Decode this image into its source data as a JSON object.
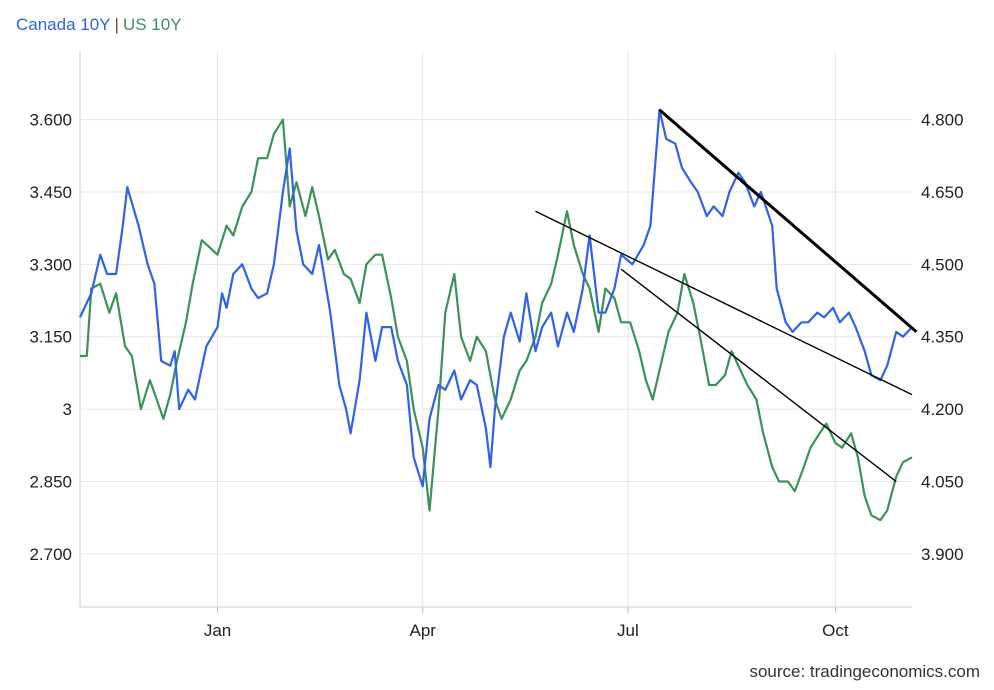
{
  "legend": {
    "canada_label": "Canada 10Y",
    "separator": "|",
    "us_label": "US 10Y"
  },
  "source": "source: tradingeconomics.com",
  "colors": {
    "canada": "#2f62ea",
    "us": "#3c9158",
    "trendline": "#000000",
    "grid": "#e6e6e6"
  },
  "chart_data": {
    "type": "line",
    "x_range": [
      "2023-11-01",
      "2024-11-04"
    ],
    "x_ticks": [
      {
        "label": "Jan",
        "date": "2024-01-01"
      },
      {
        "label": "Apr",
        "date": "2024-04-01"
      },
      {
        "label": "Jul",
        "date": "2024-07-01"
      },
      {
        "label": "Oct",
        "date": "2024-10-01"
      }
    ],
    "left_axis": {
      "min": 2.59,
      "max": 3.74,
      "ticks": [
        2.7,
        2.85,
        3.0,
        3.15,
        3.3,
        3.45,
        3.6
      ],
      "tick_labels": [
        "2.700",
        "2.850",
        "3",
        "3.150",
        "3.300",
        "3.450",
        "3.600"
      ]
    },
    "right_axis": {
      "min": 3.79,
      "max": 4.94,
      "ticks": [
        3.9,
        4.05,
        4.2,
        4.35,
        4.5,
        4.65,
        4.8
      ],
      "tick_labels": [
        "3.900",
        "4.050",
        "4.200",
        "4.350",
        "4.500",
        "4.650",
        "4.800"
      ]
    },
    "grid": true,
    "series": [
      {
        "name": "Canada 10Y",
        "axis": "left",
        "points": [
          [
            "2023-11-01",
            3.19
          ],
          [
            "2023-11-06",
            3.24
          ],
          [
            "2023-11-10",
            3.32
          ],
          [
            "2023-11-13",
            3.28
          ],
          [
            "2023-11-17",
            3.28
          ],
          [
            "2023-11-20",
            3.38
          ],
          [
            "2023-11-22",
            3.46
          ],
          [
            "2023-11-27",
            3.38
          ],
          [
            "2023-12-01",
            3.3
          ],
          [
            "2023-12-04",
            3.26
          ],
          [
            "2023-12-07",
            3.1
          ],
          [
            "2023-12-11",
            3.09
          ],
          [
            "2023-12-13",
            3.12
          ],
          [
            "2023-12-15",
            3.0
          ],
          [
            "2023-12-19",
            3.04
          ],
          [
            "2023-12-22",
            3.02
          ],
          [
            "2023-12-27",
            3.13
          ],
          [
            "2024-01-01",
            3.17
          ],
          [
            "2024-01-03",
            3.24
          ],
          [
            "2024-01-05",
            3.21
          ],
          [
            "2024-01-08",
            3.28
          ],
          [
            "2024-01-12",
            3.3
          ],
          [
            "2024-01-16",
            3.25
          ],
          [
            "2024-01-19",
            3.23
          ],
          [
            "2024-01-23",
            3.24
          ],
          [
            "2024-01-26",
            3.3
          ],
          [
            "2024-01-30",
            3.45
          ],
          [
            "2024-02-02",
            3.54
          ],
          [
            "2024-02-05",
            3.37
          ],
          [
            "2024-02-08",
            3.3
          ],
          [
            "2024-02-12",
            3.28
          ],
          [
            "2024-02-15",
            3.34
          ],
          [
            "2024-02-20",
            3.2
          ],
          [
            "2024-02-24",
            3.05
          ],
          [
            "2024-02-27",
            3.0
          ],
          [
            "2024-02-29",
            2.95
          ],
          [
            "2024-03-04",
            3.06
          ],
          [
            "2024-03-07",
            3.2
          ],
          [
            "2024-03-11",
            3.1
          ],
          [
            "2024-03-14",
            3.17
          ],
          [
            "2024-03-18",
            3.17
          ],
          [
            "2024-03-21",
            3.1
          ],
          [
            "2024-03-25",
            3.05
          ],
          [
            "2024-03-28",
            2.9
          ],
          [
            "2024-04-01",
            2.84
          ],
          [
            "2024-04-04",
            2.98
          ],
          [
            "2024-04-08",
            3.05
          ],
          [
            "2024-04-11",
            3.04
          ],
          [
            "2024-04-15",
            3.08
          ],
          [
            "2024-04-18",
            3.02
          ],
          [
            "2024-04-22",
            3.06
          ],
          [
            "2024-04-25",
            3.05
          ],
          [
            "2024-04-29",
            2.96
          ],
          [
            "2024-05-01",
            2.88
          ],
          [
            "2024-05-03",
            3.0
          ],
          [
            "2024-05-07",
            3.15
          ],
          [
            "2024-05-10",
            3.2
          ],
          [
            "2024-05-14",
            3.14
          ],
          [
            "2024-05-17",
            3.24
          ],
          [
            "2024-05-21",
            3.12
          ],
          [
            "2024-05-24",
            3.17
          ],
          [
            "2024-05-28",
            3.2
          ],
          [
            "2024-05-31",
            3.13
          ],
          [
            "2024-06-04",
            3.2
          ],
          [
            "2024-06-07",
            3.16
          ],
          [
            "2024-06-11",
            3.25
          ],
          [
            "2024-06-14",
            3.36
          ],
          [
            "2024-06-18",
            3.2
          ],
          [
            "2024-06-21",
            3.2
          ],
          [
            "2024-06-25",
            3.25
          ],
          [
            "2024-06-28",
            3.32
          ],
          [
            "2024-07-03",
            3.3
          ],
          [
            "2024-07-08",
            3.34
          ],
          [
            "2024-07-11",
            3.38
          ],
          [
            "2024-07-15",
            3.62
          ],
          [
            "2024-07-18",
            3.56
          ],
          [
            "2024-07-22",
            3.55
          ],
          [
            "2024-07-25",
            3.5
          ],
          [
            "2024-07-29",
            3.47
          ],
          [
            "2024-08-01",
            3.45
          ],
          [
            "2024-08-05",
            3.4
          ],
          [
            "2024-08-08",
            3.42
          ],
          [
            "2024-08-12",
            3.4
          ],
          [
            "2024-08-15",
            3.45
          ],
          [
            "2024-08-19",
            3.49
          ],
          [
            "2024-08-22",
            3.47
          ],
          [
            "2024-08-26",
            3.42
          ],
          [
            "2024-08-29",
            3.45
          ],
          [
            "2024-09-03",
            3.38
          ],
          [
            "2024-09-05",
            3.25
          ],
          [
            "2024-09-09",
            3.18
          ],
          [
            "2024-09-12",
            3.16
          ],
          [
            "2024-09-16",
            3.18
          ],
          [
            "2024-09-19",
            3.18
          ],
          [
            "2024-09-23",
            3.2
          ],
          [
            "2024-09-26",
            3.19
          ],
          [
            "2024-09-30",
            3.21
          ],
          [
            "2024-10-03",
            3.18
          ],
          [
            "2024-10-07",
            3.2
          ],
          [
            "2024-10-10",
            3.17
          ],
          [
            "2024-10-14",
            3.12
          ],
          [
            "2024-10-17",
            3.07
          ],
          [
            "2024-10-21",
            3.06
          ],
          [
            "2024-10-24",
            3.09
          ],
          [
            "2024-10-28",
            3.16
          ],
          [
            "2024-10-31",
            3.15
          ],
          [
            "2024-11-04",
            3.17
          ]
        ]
      },
      {
        "name": "US 10Y",
        "axis": "right",
        "points": [
          [
            "2023-11-01",
            4.31
          ],
          [
            "2023-11-04",
            4.31
          ],
          [
            "2023-11-06",
            4.45
          ],
          [
            "2023-11-10",
            4.46
          ],
          [
            "2023-11-14",
            4.4
          ],
          [
            "2023-11-17",
            4.44
          ],
          [
            "2023-11-21",
            4.33
          ],
          [
            "2023-11-24",
            4.31
          ],
          [
            "2023-11-28",
            4.2
          ],
          [
            "2023-12-02",
            4.26
          ],
          [
            "2023-12-05",
            4.22
          ],
          [
            "2023-12-08",
            4.18
          ],
          [
            "2023-12-11",
            4.23
          ],
          [
            "2023-12-14",
            4.3
          ],
          [
            "2023-12-18",
            4.38
          ],
          [
            "2023-12-21",
            4.46
          ],
          [
            "2023-12-25",
            4.55
          ],
          [
            "2024-01-01",
            4.52
          ],
          [
            "2024-01-05",
            4.58
          ],
          [
            "2024-01-08",
            4.56
          ],
          [
            "2024-01-12",
            4.62
          ],
          [
            "2024-01-16",
            4.65
          ],
          [
            "2024-01-19",
            4.72
          ],
          [
            "2024-01-23",
            4.72
          ],
          [
            "2024-01-26",
            4.77
          ],
          [
            "2024-01-30",
            4.8
          ],
          [
            "2024-02-02",
            4.62
          ],
          [
            "2024-02-05",
            4.67
          ],
          [
            "2024-02-09",
            4.6
          ],
          [
            "2024-02-12",
            4.66
          ],
          [
            "2024-02-15",
            4.6
          ],
          [
            "2024-02-19",
            4.51
          ],
          [
            "2024-02-22",
            4.53
          ],
          [
            "2024-02-26",
            4.48
          ],
          [
            "2024-02-29",
            4.47
          ],
          [
            "2024-03-04",
            4.42
          ],
          [
            "2024-03-07",
            4.5
          ],
          [
            "2024-03-11",
            4.52
          ],
          [
            "2024-03-14",
            4.52
          ],
          [
            "2024-03-18",
            4.43
          ],
          [
            "2024-03-21",
            4.35
          ],
          [
            "2024-03-25",
            4.3
          ],
          [
            "2024-03-28",
            4.2
          ],
          [
            "2024-04-01",
            4.12
          ],
          [
            "2024-04-04",
            3.99
          ],
          [
            "2024-04-08",
            4.2
          ],
          [
            "2024-04-11",
            4.4
          ],
          [
            "2024-04-15",
            4.48
          ],
          [
            "2024-04-18",
            4.35
          ],
          [
            "2024-04-22",
            4.3
          ],
          [
            "2024-04-25",
            4.35
          ],
          [
            "2024-04-29",
            4.32
          ],
          [
            "2024-05-03",
            4.22
          ],
          [
            "2024-05-06",
            4.18
          ],
          [
            "2024-05-10",
            4.22
          ],
          [
            "2024-05-14",
            4.28
          ],
          [
            "2024-05-17",
            4.3
          ],
          [
            "2024-05-21",
            4.35
          ],
          [
            "2024-05-24",
            4.42
          ],
          [
            "2024-05-28",
            4.46
          ],
          [
            "2024-05-31",
            4.52
          ],
          [
            "2024-06-04",
            4.61
          ],
          [
            "2024-06-07",
            4.54
          ],
          [
            "2024-06-11",
            4.48
          ],
          [
            "2024-06-14",
            4.45
          ],
          [
            "2024-06-18",
            4.36
          ],
          [
            "2024-06-21",
            4.45
          ],
          [
            "2024-06-25",
            4.43
          ],
          [
            "2024-06-28",
            4.38
          ],
          [
            "2024-07-02",
            4.38
          ],
          [
            "2024-07-06",
            4.32
          ],
          [
            "2024-07-09",
            4.26
          ],
          [
            "2024-07-12",
            4.22
          ],
          [
            "2024-07-16",
            4.3
          ],
          [
            "2024-07-19",
            4.36
          ],
          [
            "2024-07-23",
            4.4
          ],
          [
            "2024-07-26",
            4.48
          ],
          [
            "2024-07-30",
            4.42
          ],
          [
            "2024-08-02",
            4.35
          ],
          [
            "2024-08-06",
            4.25
          ],
          [
            "2024-08-09",
            4.25
          ],
          [
            "2024-08-13",
            4.27
          ],
          [
            "2024-08-16",
            4.32
          ],
          [
            "2024-08-20",
            4.28
          ],
          [
            "2024-08-23",
            4.25
          ],
          [
            "2024-08-27",
            4.22
          ],
          [
            "2024-08-30",
            4.15
          ],
          [
            "2024-09-03",
            4.08
          ],
          [
            "2024-09-06",
            4.05
          ],
          [
            "2024-09-10",
            4.05
          ],
          [
            "2024-09-13",
            4.03
          ],
          [
            "2024-09-17",
            4.08
          ],
          [
            "2024-09-20",
            4.12
          ],
          [
            "2024-09-24",
            4.15
          ],
          [
            "2024-09-27",
            4.17
          ],
          [
            "2024-10-01",
            4.13
          ],
          [
            "2024-10-04",
            4.12
          ],
          [
            "2024-10-08",
            4.15
          ],
          [
            "2024-10-11",
            4.1
          ],
          [
            "2024-10-14",
            4.02
          ],
          [
            "2024-10-17",
            3.98
          ],
          [
            "2024-10-21",
            3.97
          ],
          [
            "2024-10-24",
            3.99
          ],
          [
            "2024-10-28",
            4.06
          ],
          [
            "2024-10-31",
            4.09
          ],
          [
            "2024-11-04",
            4.1
          ]
        ]
      }
    ],
    "trendlines": [
      {
        "axis": "left",
        "from": [
          "2024-07-15",
          3.62
        ],
        "to": [
          "2024-11-06",
          3.16
        ]
      },
      {
        "axis": "right",
        "from": [
          "2024-05-21",
          4.61
        ],
        "to": [
          "2024-11-04",
          4.23
        ]
      },
      {
        "axis": "right",
        "from": [
          "2024-06-28",
          4.49
        ],
        "to": [
          "2024-10-28",
          4.05
        ]
      }
    ]
  }
}
